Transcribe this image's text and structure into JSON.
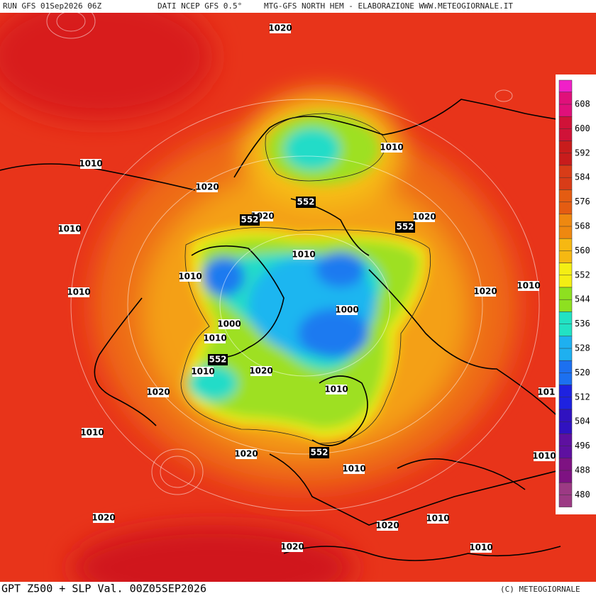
{
  "header": {
    "run": "RUN GFS 01Sep2026 06Z",
    "source": "DATI NCEP GFS 0.5°",
    "credit": "MTG-GFS NORTH HEM - ELABORAZIONE WWW.METEOGIORNALE.IT"
  },
  "footer": {
    "title": "GPT Z500 + SLP Val. 00Z05SEP2026",
    "copyright": "(C) METEOGIORNALE"
  },
  "colorbar": {
    "labels": [
      608,
      600,
      592,
      584,
      576,
      568,
      560,
      552,
      544,
      536,
      528,
      520,
      512,
      504,
      496,
      488,
      480
    ],
    "colors": [
      "#e0107a",
      "#d01238",
      "#c81c1c",
      "#d83c18",
      "#e45c12",
      "#ee8810",
      "#f6b812",
      "#f4ee14",
      "#8ee020",
      "#22e2c4",
      "#1eb0f0",
      "#1c70f0",
      "#1e22e0",
      "#3012c0",
      "#5e10a0",
      "#7e1282",
      "#9c3a84"
    ]
  },
  "isobar_labels": [
    1020,
    1010,
    1020,
    1010,
    1020,
    1020,
    1010,
    1010,
    1010,
    1010,
    1020,
    1010,
    1000,
    1000,
    1010,
    1010,
    1020,
    1010,
    1020,
    1010,
    1010,
    1020,
    1010,
    1010,
    1020,
    1010,
    1020,
    1020,
    1010,
    1020
  ],
  "height_labels": [
    552,
    552,
    552,
    552,
    552
  ]
}
